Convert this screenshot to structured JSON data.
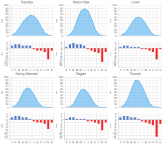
{
  "chart_data": [
    {
      "type": "area",
      "title": "Topolice",
      "ylabel": "cm",
      "categories": [
        "J",
        "F",
        "M",
        "A",
        "M",
        "J",
        "J",
        "A",
        "S",
        "O",
        "N",
        "D"
      ],
      "values": [
        3,
        12,
        28,
        48,
        60,
        68,
        65,
        52,
        30,
        10,
        3,
        1
      ],
      "ylim": [
        0,
        100
      ],
      "yticks": [
        0,
        10,
        20,
        30,
        40,
        50,
        60,
        70,
        80,
        90,
        100
      ],
      "grid": true,
      "tick_labels": "y"
    },
    {
      "type": "bar",
      "ylabel": "cm",
      "categories": [
        "J",
        "F",
        "M",
        "A",
        "M",
        "J",
        "J",
        "A",
        "S",
        "O",
        "N",
        "D"
      ],
      "values": [
        2,
        3,
        3,
        2,
        2,
        2,
        -1,
        -2,
        -2,
        -3,
        -9,
        -2
      ],
      "colors": [
        "#4472C4",
        "#4472C4",
        "#4472C4",
        "#4472C4",
        "#4472C4",
        "#4472C4",
        "#EE2222",
        "#EE2222",
        "#EE2222",
        "#EE2222",
        "#EE2222",
        "#EE2222"
      ],
      "ylim": [
        -15,
        6
      ],
      "yticks": [
        -14,
        -12,
        -10,
        -8,
        -6,
        -4,
        -2,
        0,
        2,
        4
      ],
      "grid": true
    },
    {
      "type": "area",
      "title": "Tanko-Sale",
      "ylabel": "cm",
      "categories": [
        "J",
        "F",
        "M",
        "A",
        "M",
        "J",
        "J",
        "A",
        "S",
        "O",
        "N",
        "D"
      ],
      "values": [
        1,
        5,
        22,
        55,
        82,
        90,
        82,
        55,
        22,
        5,
        1,
        0
      ],
      "ylim": [
        0,
        100
      ],
      "yticks": [
        0,
        10,
        20,
        30,
        40,
        50,
        60,
        70,
        80,
        90,
        100
      ],
      "grid": true,
      "tick_labels": "y"
    },
    {
      "type": "bar",
      "ylabel": "cm",
      "categories": [
        "J",
        "F",
        "M",
        "A",
        "M",
        "J",
        "J",
        "A",
        "S",
        "O",
        "N",
        "D"
      ],
      "values": [
        1,
        3,
        4,
        3,
        3,
        2,
        -1,
        -2,
        -3,
        -4,
        -11,
        -3
      ],
      "colors": [
        "#4472C4",
        "#4472C4",
        "#4472C4",
        "#4472C4",
        "#4472C4",
        "#4472C4",
        "#EE2222",
        "#EE2222",
        "#EE2222",
        "#EE2222",
        "#EE2222",
        "#EE2222"
      ],
      "ylim": [
        -15,
        6
      ],
      "yticks": [
        -14,
        -12,
        -10,
        -8,
        -6,
        -4,
        -2,
        0,
        2,
        4
      ],
      "grid": true
    },
    {
      "type": "area",
      "title": "Lovel",
      "ylabel": "cm",
      "categories": [
        "J",
        "F",
        "M",
        "A",
        "M",
        "J",
        "J",
        "A",
        "S",
        "O",
        "N",
        "D"
      ],
      "values": [
        2,
        8,
        22,
        42,
        58,
        62,
        55,
        38,
        18,
        5,
        1,
        0
      ],
      "ylim": [
        0,
        100
      ],
      "yticks": [
        0,
        10,
        20,
        30,
        40,
        50,
        60,
        70,
        80,
        90,
        100
      ],
      "grid": true,
      "tick_labels": "y"
    },
    {
      "type": "bar",
      "ylabel": "cm",
      "categories": [
        "J",
        "F",
        "M",
        "A",
        "M",
        "J",
        "J",
        "A",
        "S",
        "O",
        "N",
        "D"
      ],
      "values": [
        1,
        2,
        2,
        1,
        1,
        1,
        -1,
        -1,
        -2,
        -3,
        -9,
        -1
      ],
      "colors": [
        "#4472C4",
        "#4472C4",
        "#4472C4",
        "#4472C4",
        "#4472C4",
        "#4472C4",
        "#EE2222",
        "#EE2222",
        "#EE2222",
        "#EE2222",
        "#EE2222",
        "#EE2222"
      ],
      "ylim": [
        -15,
        6
      ],
      "yticks": [
        -14,
        -12,
        -10,
        -8,
        -6,
        -4,
        -2,
        0,
        2,
        4
      ],
      "grid": true
    },
    {
      "type": "area",
      "title": "Horny-Marsink",
      "ylabel": "cm",
      "categories": [
        "J",
        "F",
        "M",
        "A",
        "M",
        "J",
        "J",
        "A",
        "S",
        "O",
        "N",
        "D"
      ],
      "values": [
        2,
        8,
        25,
        52,
        65,
        60,
        42,
        20,
        6,
        1,
        0,
        1
      ],
      "ylim": [
        0,
        100
      ],
      "yticks": [
        0,
        10,
        20,
        30,
        40,
        50,
        60,
        70,
        80,
        90,
        100
      ],
      "grid": true,
      "tick_labels": "y"
    },
    {
      "type": "bar",
      "ylabel": "cm",
      "categories": [
        "J",
        "F",
        "M",
        "A",
        "M",
        "J",
        "J",
        "A",
        "S",
        "O",
        "N",
        "D"
      ],
      "values": [
        2,
        3,
        3,
        2,
        2,
        1,
        -1,
        -2,
        -2,
        -3,
        -7,
        -2
      ],
      "colors": [
        "#4472C4",
        "#4472C4",
        "#4472C4",
        "#4472C4",
        "#4472C4",
        "#4472C4",
        "#EE2222",
        "#EE2222",
        "#EE2222",
        "#EE2222",
        "#EE2222",
        "#EE2222"
      ],
      "ylim": [
        -15,
        6
      ],
      "yticks": [
        -14,
        -12,
        -10,
        -8,
        -6,
        -4,
        -2,
        0,
        2,
        4
      ],
      "grid": true
    },
    {
      "type": "area",
      "title": "Ragan",
      "ylabel": "cm",
      "categories": [
        "J",
        "F",
        "M",
        "A",
        "M",
        "J",
        "J",
        "A",
        "S",
        "O",
        "N",
        "D"
      ],
      "values": [
        1,
        4,
        15,
        38,
        58,
        60,
        48,
        28,
        10,
        2,
        0,
        0
      ],
      "ylim": [
        0,
        100
      ],
      "yticks": [
        0,
        10,
        20,
        30,
        40,
        50,
        60,
        70,
        80,
        90,
        100
      ],
      "grid": true,
      "tick_labels": "y"
    },
    {
      "type": "bar",
      "ylabel": "cm",
      "categories": [
        "J",
        "F",
        "M",
        "A",
        "M",
        "J",
        "J",
        "A",
        "S",
        "O",
        "N",
        "D"
      ],
      "values": [
        1,
        2,
        2,
        1,
        1,
        1,
        -1,
        -1,
        -2,
        -3,
        -8,
        -2
      ],
      "colors": [
        "#4472C4",
        "#4472C4",
        "#4472C4",
        "#4472C4",
        "#4472C4",
        "#4472C4",
        "#EE2222",
        "#EE2222",
        "#EE2222",
        "#EE2222",
        "#EE2222",
        "#EE2222"
      ],
      "ylim": [
        -15,
        6
      ],
      "yticks": [
        -14,
        -12,
        -10,
        -8,
        -6,
        -4,
        -2,
        0,
        2,
        4
      ],
      "grid": true
    },
    {
      "type": "area",
      "title": "Trowak",
      "ylabel": "cm",
      "categories": [
        "J",
        "F",
        "M",
        "A",
        "M",
        "J",
        "J",
        "A",
        "S",
        "O",
        "N",
        "D"
      ],
      "values": [
        2,
        10,
        30,
        62,
        90,
        88,
        68,
        40,
        14,
        3,
        1,
        1
      ],
      "ylim": [
        0,
        100
      ],
      "yticks": [
        0,
        10,
        20,
        30,
        40,
        50,
        60,
        70,
        80,
        90,
        100
      ],
      "grid": true,
      "tick_labels": "y"
    },
    {
      "type": "bar",
      "ylabel": "cm",
      "categories": [
        "J",
        "F",
        "M",
        "A",
        "M",
        "J",
        "J",
        "A",
        "S",
        "O",
        "N",
        "D"
      ],
      "values": [
        2,
        3,
        3,
        2,
        2,
        1,
        -1,
        -2,
        -3,
        -4,
        -13,
        -3
      ],
      "colors": [
        "#4472C4",
        "#4472C4",
        "#4472C4",
        "#4472C4",
        "#4472C4",
        "#4472C4",
        "#EE2222",
        "#EE2222",
        "#EE2222",
        "#EE2222",
        "#EE2222",
        "#EE2222"
      ],
      "ylim": [
        -15,
        6
      ],
      "yticks": [
        -14,
        -12,
        -10,
        -8,
        -6,
        -4,
        -2,
        0,
        2,
        4
      ],
      "grid": true
    }
  ]
}
